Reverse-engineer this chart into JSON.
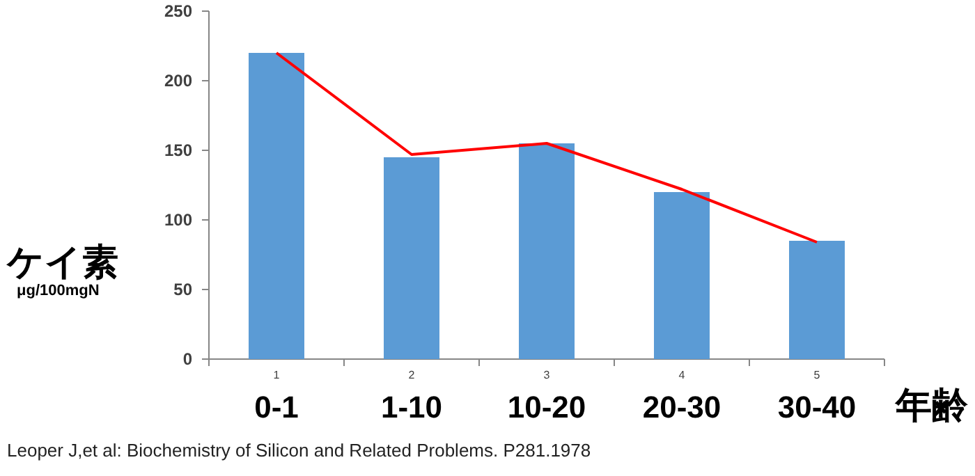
{
  "chart_data": {
    "type": "bar",
    "categories": [
      "0-1",
      "1-10",
      "10-20",
      "20-30",
      "30-40"
    ],
    "series": [
      {
        "color": "#5b9bd5",
        "values": [
          220,
          145,
          155,
          120,
          85
        ]
      },
      {
        "type": "line",
        "color": "#ff0000",
        "values": [
          220,
          147,
          155,
          122,
          84
        ]
      }
    ],
    "ylabel": "ケイ素",
    "xlabel": "年齢",
    "ylim": [
      0,
      250
    ],
    "yticks": [
      0,
      50,
      100,
      150,
      200,
      250
    ],
    "grid": false,
    "annotations": [
      "1",
      "2",
      "3",
      "4",
      "5",
      "μg/100mgN",
      "Leoper J,et al: Biochemistry of Silicon and Related Problems. P281.1978"
    ]
  }
}
